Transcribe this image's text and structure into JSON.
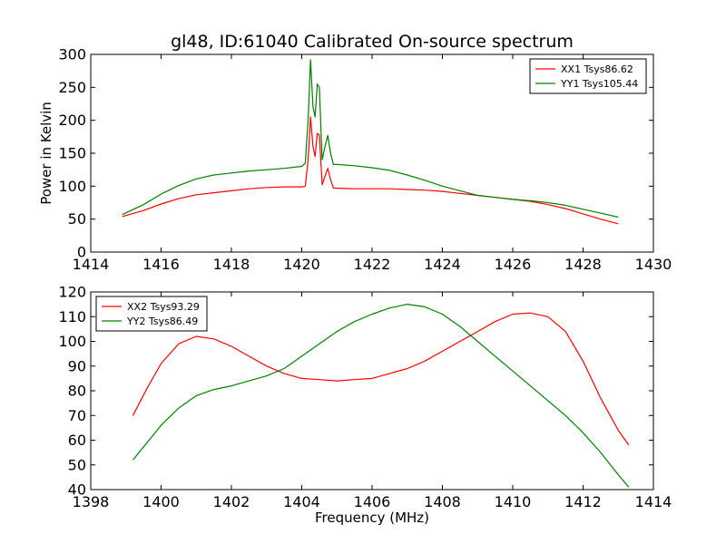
{
  "title": "gl48, ID:61040 Calibrated On-source spectrum",
  "colors": {
    "xx": "#ff0000",
    "yy": "#008000"
  },
  "chart_data": [
    {
      "type": "line",
      "ylabel": "Power in Kelvin",
      "xlabel": "",
      "xlim": [
        1414,
        1430
      ],
      "ylim": [
        0,
        300
      ],
      "xticks": [
        "1414",
        "1416",
        "1418",
        "1420",
        "1422",
        "1424",
        "1426",
        "1428",
        "1430"
      ],
      "yticks": [
        "0",
        "50",
        "100",
        "150",
        "200",
        "250",
        "300"
      ],
      "legend_position": "top-right",
      "series": [
        {
          "name": "XX1 Tsys86.62",
          "color": "#ff0000",
          "x": [
            1414.9,
            1415.5,
            1416.0,
            1416.5,
            1417.0,
            1417.5,
            1418.0,
            1418.5,
            1419.0,
            1419.5,
            1420.0,
            1420.1,
            1420.18,
            1420.25,
            1420.32,
            1420.38,
            1420.44,
            1420.5,
            1420.58,
            1420.66,
            1420.74,
            1420.82,
            1420.9,
            1421.0,
            1421.5,
            1422.0,
            1422.5,
            1423.0,
            1423.5,
            1424.0,
            1424.5,
            1425.0,
            1425.5,
            1426.0,
            1426.5,
            1427.0,
            1427.5,
            1428.0,
            1428.5,
            1429.0
          ],
          "y": [
            54,
            63,
            73,
            81,
            87,
            90,
            93,
            96,
            98,
            99,
            99,
            100,
            140,
            205,
            160,
            145,
            180,
            178,
            102,
            115,
            127,
            110,
            97,
            97,
            96,
            96,
            96,
            95,
            94,
            92,
            89,
            86,
            83,
            80,
            77,
            72,
            66,
            58,
            50,
            43
          ]
        },
        {
          "name": "YY1 Tsys105.44",
          "color": "#008000",
          "x": [
            1414.9,
            1415.5,
            1416.0,
            1416.5,
            1417.0,
            1417.5,
            1418.0,
            1418.5,
            1419.0,
            1419.5,
            1420.0,
            1420.1,
            1420.18,
            1420.25,
            1420.32,
            1420.38,
            1420.44,
            1420.5,
            1420.58,
            1420.66,
            1420.74,
            1420.82,
            1420.9,
            1421.0,
            1421.5,
            1422.0,
            1422.5,
            1423.0,
            1423.5,
            1424.0,
            1424.5,
            1425.0,
            1425.5,
            1426.0,
            1426.5,
            1427.0,
            1427.5,
            1428.0,
            1428.5,
            1429.0
          ],
          "y": [
            57,
            72,
            88,
            101,
            111,
            117,
            120,
            123,
            125,
            127,
            130,
            135,
            200,
            292,
            220,
            205,
            255,
            250,
            140,
            160,
            177,
            150,
            133,
            133,
            131,
            128,
            124,
            117,
            109,
            100,
            93,
            86,
            83,
            80,
            78,
            75,
            71,
            65,
            59,
            53
          ]
        }
      ]
    },
    {
      "type": "line",
      "ylabel": "",
      "xlabel": "Frequency (MHz)",
      "xlim": [
        1398,
        1414
      ],
      "ylim": [
        40,
        120
      ],
      "xticks": [
        "1398",
        "1400",
        "1402",
        "1404",
        "1406",
        "1408",
        "1410",
        "1412",
        "1414"
      ],
      "yticks": [
        "40",
        "50",
        "60",
        "70",
        "80",
        "90",
        "100",
        "110",
        "120"
      ],
      "legend_position": "top-left",
      "series": [
        {
          "name": "XX2 Tsys93.29",
          "color": "#ff0000",
          "x": [
            1399.2,
            1399.6,
            1400.0,
            1400.5,
            1401.0,
            1401.5,
            1402.0,
            1402.5,
            1403.0,
            1403.5,
            1404.0,
            1404.5,
            1405.0,
            1405.5,
            1406.0,
            1406.5,
            1407.0,
            1407.5,
            1408.0,
            1408.5,
            1409.0,
            1409.5,
            1410.0,
            1410.5,
            1411.0,
            1411.5,
            1412.0,
            1412.5,
            1413.0,
            1413.3
          ],
          "y": [
            70,
            81,
            91,
            99,
            102,
            101,
            98,
            94,
            90,
            87,
            85,
            84.5,
            84,
            84.5,
            85,
            87,
            89,
            92,
            96,
            100,
            104,
            108,
            111,
            111.5,
            110,
            104,
            92,
            77,
            64,
            58
          ]
        },
        {
          "name": "YY2 Tsys86.49",
          "color": "#008000",
          "x": [
            1399.2,
            1399.6,
            1400.0,
            1400.5,
            1401.0,
            1401.5,
            1402.0,
            1402.5,
            1403.0,
            1403.5,
            1404.0,
            1404.5,
            1405.0,
            1405.5,
            1406.0,
            1406.5,
            1407.0,
            1407.5,
            1408.0,
            1408.5,
            1409.0,
            1409.5,
            1410.0,
            1410.5,
            1411.0,
            1411.5,
            1412.0,
            1412.5,
            1413.0,
            1413.3
          ],
          "y": [
            52,
            59,
            66,
            73,
            78,
            80.5,
            82,
            84,
            86,
            89,
            94,
            99,
            104,
            108,
            111,
            113.5,
            115,
            114,
            111,
            106,
            100,
            94,
            88,
            82,
            76,
            70,
            63,
            55,
            46,
            41
          ]
        }
      ]
    }
  ]
}
